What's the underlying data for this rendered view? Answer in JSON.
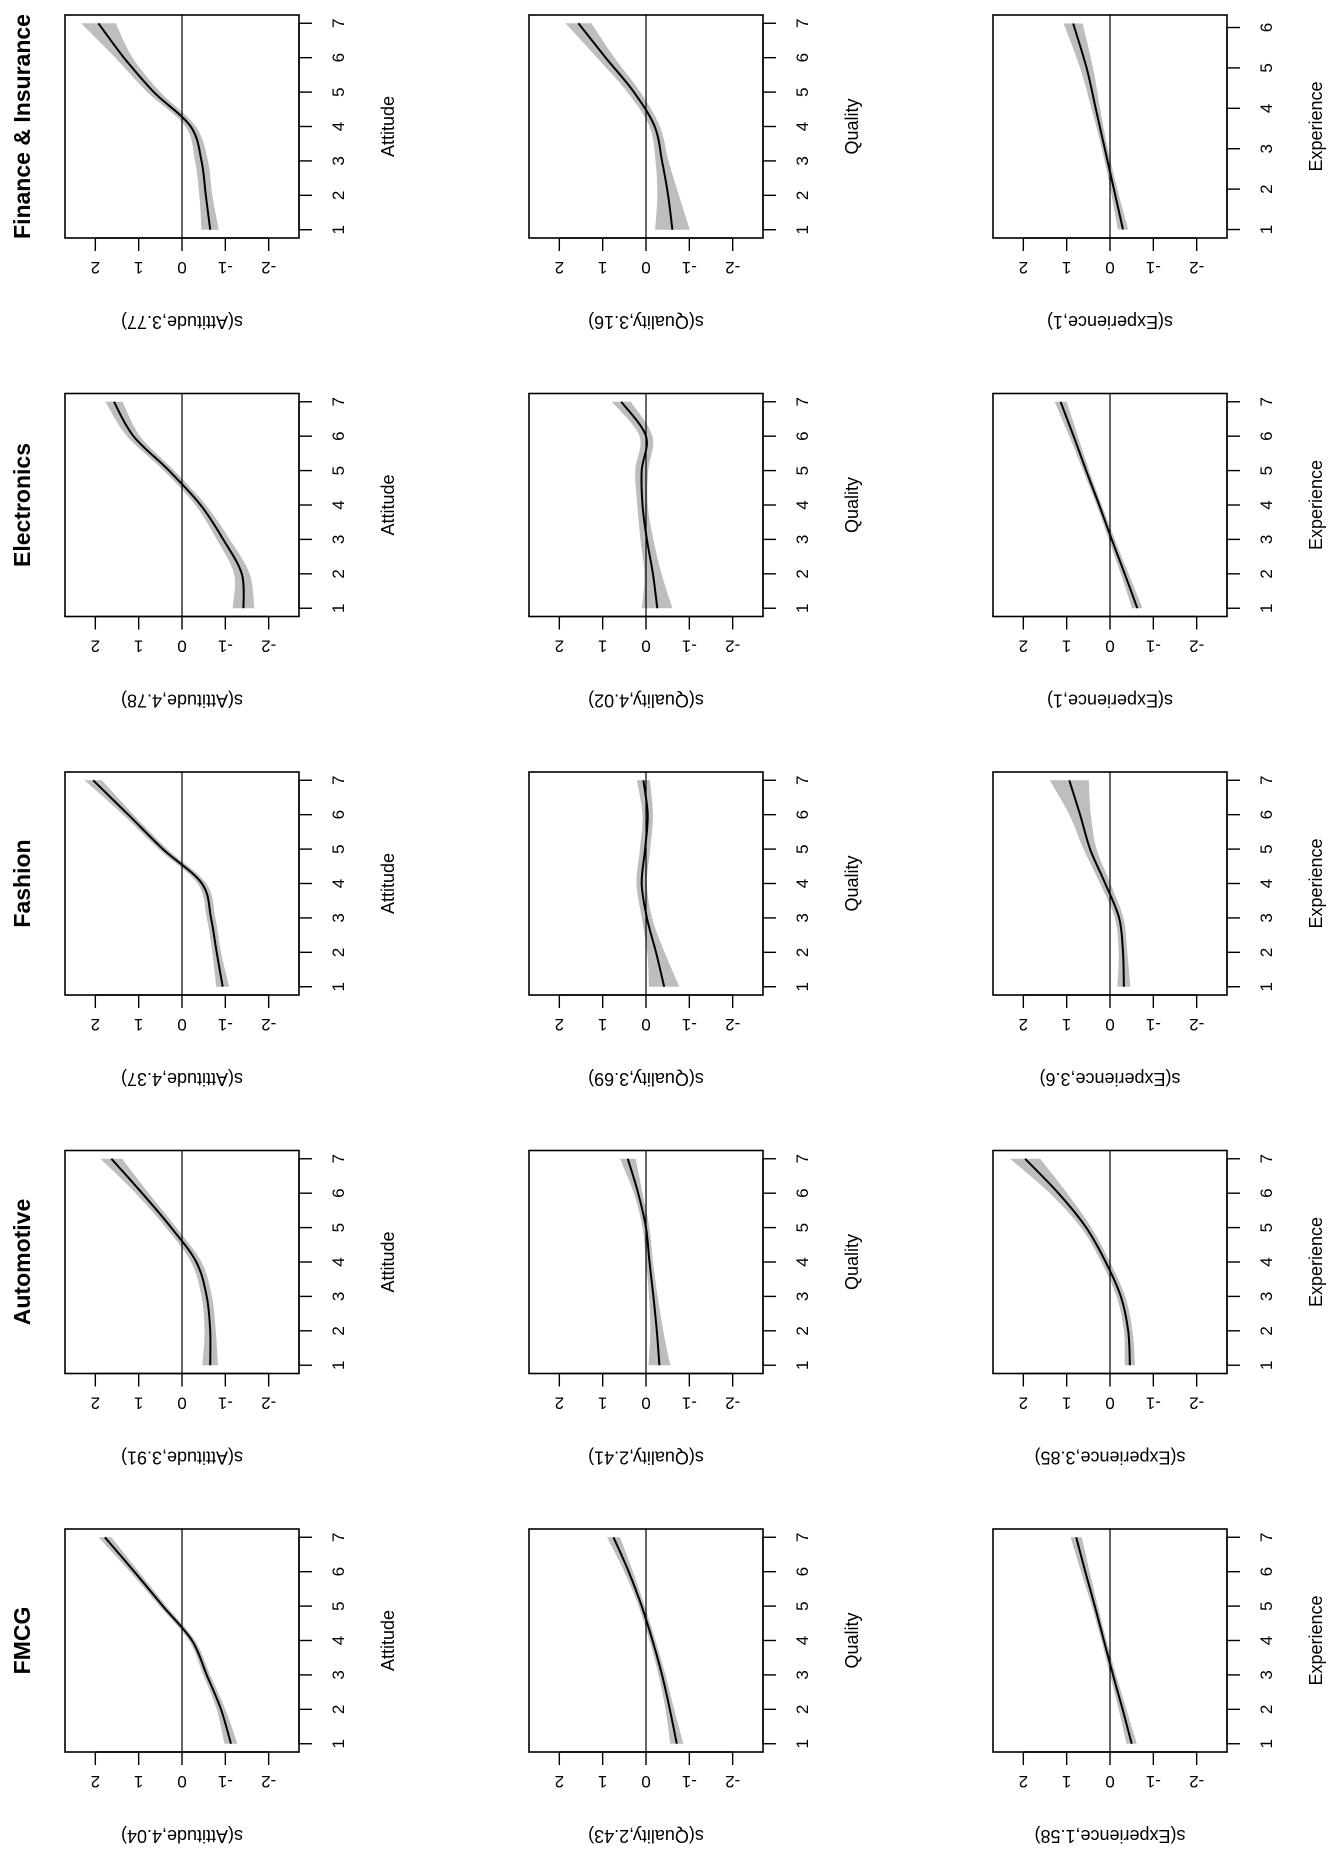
{
  "chart_data": [
    {
      "type": "line",
      "title": "FMCG",
      "xlabel": "Attitude",
      "ylabel": "s(Attitude,4.04)",
      "xlim": [
        0.76,
        7.24
      ],
      "ylim": [
        -2.7,
        2.7
      ],
      "xticks": [
        1,
        2,
        3,
        4,
        5,
        6,
        7
      ],
      "yticks": [
        -2,
        -1,
        0,
        1,
        2
      ],
      "x": [
        1,
        2,
        3,
        4,
        5,
        6,
        7
      ],
      "fit": [
        -1.13,
        -0.9,
        -0.57,
        -0.23,
        0.44,
        1.1,
        1.78
      ],
      "ci_halfwidth": [
        0.15,
        0.1,
        0.08,
        0.07,
        0.08,
        0.1,
        0.15
      ]
    },
    {
      "type": "line",
      "title": "FMCG",
      "xlabel": "Quality",
      "ylabel": "s(Quality,2.43)",
      "xlim": [
        0.76,
        7.24
      ],
      "ylim": [
        -2.7,
        2.7
      ],
      "xticks": [
        1,
        2,
        3,
        4,
        5,
        6,
        7
      ],
      "yticks": [
        -2,
        -1,
        0,
        1,
        2
      ],
      "x": [
        1,
        2,
        3,
        4,
        5,
        6,
        7
      ],
      "fit": [
        -0.71,
        -0.55,
        -0.37,
        -0.15,
        0.1,
        0.4,
        0.75
      ],
      "ci_halfwidth": [
        0.15,
        0.1,
        0.08,
        0.07,
        0.07,
        0.1,
        0.15
      ]
    },
    {
      "type": "line",
      "title": "FMCG",
      "xlabel": "Experience",
      "ylabel": "s(Experience,1.58)",
      "xlim": [
        0.76,
        7.24
      ],
      "ylim": [
        -2.7,
        2.7
      ],
      "xticks": [
        1,
        2,
        3,
        4,
        5,
        6,
        7
      ],
      "yticks": [
        -2,
        -1,
        0,
        1,
        2
      ],
      "x": [
        1,
        2,
        3,
        4,
        5,
        6,
        7
      ],
      "fit": [
        -0.5,
        -0.29,
        -0.07,
        0.14,
        0.35,
        0.57,
        0.78
      ],
      "ci_halfwidth": [
        0.12,
        0.09,
        0.07,
        0.06,
        0.07,
        0.1,
        0.13
      ]
    },
    {
      "type": "line",
      "title": "Automotive",
      "xlabel": "Attitude",
      "ylabel": "s(Attitude,3.91)",
      "xlim": [
        0.76,
        7.24
      ],
      "ylim": [
        -2.7,
        2.7
      ],
      "xticks": [
        1,
        2,
        3,
        4,
        5,
        6,
        7
      ],
      "yticks": [
        -2,
        -1,
        0,
        1,
        2
      ],
      "x": [
        1,
        2,
        3,
        4,
        5,
        6,
        7
      ],
      "fit": [
        -0.65,
        -0.65,
        -0.57,
        -0.33,
        0.25,
        0.92,
        1.63
      ],
      "ci_halfwidth": [
        0.18,
        0.13,
        0.12,
        0.12,
        0.12,
        0.15,
        0.25
      ]
    },
    {
      "type": "line",
      "title": "Automotive",
      "xlabel": "Quality",
      "ylabel": "s(Quality,2.41)",
      "xlim": [
        0.76,
        7.24
      ],
      "ylim": [
        -2.7,
        2.7
      ],
      "xticks": [
        1,
        2,
        3,
        4,
        5,
        6,
        7
      ],
      "yticks": [
        -2,
        -1,
        0,
        1,
        2
      ],
      "x": [
        1,
        2,
        3,
        4,
        5,
        6,
        7
      ],
      "fit": [
        -0.31,
        -0.25,
        -0.17,
        -0.08,
        0.0,
        0.18,
        0.42
      ],
      "ci_halfwidth": [
        0.25,
        0.15,
        0.1,
        0.08,
        0.08,
        0.1,
        0.18
      ]
    },
    {
      "type": "line",
      "title": "Automotive",
      "xlabel": "Experience",
      "ylabel": "s(Experience,3.85)",
      "xlim": [
        0.76,
        7.24
      ],
      "ylim": [
        -2.7,
        2.7
      ],
      "xticks": [
        1,
        2,
        3,
        4,
        5,
        6,
        7
      ],
      "yticks": [
        -2,
        -1,
        0,
        1,
        2
      ],
      "x": [
        1,
        2,
        3,
        4,
        5,
        6,
        7
      ],
      "fit": [
        -0.46,
        -0.42,
        -0.25,
        0.1,
        0.55,
        1.19,
        1.96
      ],
      "ci_halfwidth": [
        0.12,
        0.1,
        0.1,
        0.1,
        0.12,
        0.2,
        0.35
      ]
    },
    {
      "type": "line",
      "title": "Fashion",
      "xlabel": "Attitude",
      "ylabel": "s(Attitude,4.37)",
      "xlim": [
        0.76,
        7.24
      ],
      "ylim": [
        -2.7,
        2.7
      ],
      "xticks": [
        1,
        2,
        3,
        4,
        5,
        6,
        7
      ],
      "yticks": [
        -2,
        -1,
        0,
        1,
        2
      ],
      "x": [
        1,
        2,
        3,
        4,
        5,
        6,
        7
      ],
      "fit": [
        -0.94,
        -0.8,
        -0.67,
        -0.46,
        0.44,
        1.24,
        2.05
      ],
      "ci_halfwidth": [
        0.15,
        0.1,
        0.1,
        0.1,
        0.1,
        0.12,
        0.2
      ]
    },
    {
      "type": "line",
      "title": "Fashion",
      "xlabel": "Quality",
      "ylabel": "s(Quality,3.69)",
      "xlim": [
        0.76,
        7.24
      ],
      "ylim": [
        -2.7,
        2.7
      ],
      "xticks": [
        1,
        2,
        3,
        4,
        5,
        6,
        7
      ],
      "yticks": [
        -2,
        -1,
        0,
        1,
        2
      ],
      "x": [
        1,
        2,
        3,
        4,
        5,
        6,
        7
      ],
      "fit": [
        -0.42,
        -0.23,
        -0.02,
        0.1,
        0.02,
        -0.04,
        0.06
      ],
      "ci_halfwidth": [
        0.35,
        0.2,
        0.12,
        0.12,
        0.12,
        0.12,
        0.15
      ]
    },
    {
      "type": "line",
      "title": "Fashion",
      "xlabel": "Experience",
      "ylabel": "s(Experience,3.6)",
      "xlim": [
        0.76,
        7.24
      ],
      "ylim": [
        -2.7,
        2.7
      ],
      "xticks": [
        1,
        2,
        3,
        4,
        5,
        6,
        7
      ],
      "yticks": [
        -2,
        -1,
        0,
        1,
        2
      ],
      "x": [
        1,
        2,
        3,
        4,
        5,
        6,
        7
      ],
      "fit": [
        -0.32,
        -0.3,
        -0.21,
        0.11,
        0.46,
        0.69,
        0.94
      ],
      "ci_halfwidth": [
        0.15,
        0.1,
        0.1,
        0.12,
        0.15,
        0.25,
        0.45
      ]
    },
    {
      "type": "line",
      "title": "Electronics",
      "xlabel": "Attitude",
      "ylabel": "s(Attitude,4.78)",
      "xlim": [
        0.76,
        7.24
      ],
      "ylim": [
        -2.7,
        2.7
      ],
      "xticks": [
        1,
        2,
        3,
        4,
        5,
        6,
        7
      ],
      "yticks": [
        -2,
        -1,
        0,
        1,
        2
      ],
      "x": [
        1,
        2,
        3,
        4,
        5,
        6,
        7
      ],
      "fit": [
        -1.42,
        -1.38,
        -0.95,
        -0.43,
        0.3,
        1.12,
        1.57
      ],
      "ci_halfwidth": [
        0.25,
        0.18,
        0.15,
        0.12,
        0.12,
        0.15,
        0.2
      ]
    },
    {
      "type": "line",
      "title": "Electronics",
      "xlabel": "Quality",
      "ylabel": "s(Quality,4.02)",
      "xlim": [
        0.76,
        7.24
      ],
      "ylim": [
        -2.7,
        2.7
      ],
      "xticks": [
        1,
        2,
        3,
        4,
        5,
        6,
        7
      ],
      "yticks": [
        -2,
        -1,
        0,
        1,
        2
      ],
      "x": [
        1,
        2,
        3,
        4,
        5,
        6,
        7
      ],
      "fit": [
        -0.26,
        -0.16,
        -0.02,
        0.08,
        0.1,
        0.0,
        0.57
      ],
      "ci_halfwidth": [
        0.35,
        0.2,
        0.15,
        0.12,
        0.15,
        0.15,
        0.22
      ]
    },
    {
      "type": "line",
      "title": "Electronics",
      "xlabel": "Experience",
      "ylabel": "s(Experience,1)",
      "xlim": [
        0.76,
        7.24
      ],
      "ylim": [
        -2.7,
        2.7
      ],
      "xticks": [
        1,
        2,
        3,
        4,
        5,
        6,
        7
      ],
      "yticks": [
        -2,
        -1,
        0,
        1,
        2
      ],
      "x": [
        1,
        2,
        3,
        4,
        5,
        6,
        7
      ],
      "fit": [
        -0.63,
        -0.34,
        -0.04,
        0.25,
        0.55,
        0.84,
        1.14
      ],
      "ci_halfwidth": [
        0.12,
        0.09,
        0.07,
        0.06,
        0.07,
        0.1,
        0.14
      ]
    },
    {
      "type": "line",
      "title": "Finance & Insurance",
      "xlabel": "Attitude",
      "ylabel": "s(Attitude,3.77)",
      "xlim": [
        0.76,
        7.24
      ],
      "ylim": [
        -2.7,
        2.7
      ],
      "xticks": [
        1,
        2,
        3,
        4,
        5,
        6,
        7
      ],
      "yticks": [
        -2,
        -1,
        0,
        1,
        2
      ],
      "x": [
        1,
        2,
        3,
        4,
        5,
        6,
        7
      ],
      "fit": [
        -0.65,
        -0.55,
        -0.45,
        -0.2,
        0.65,
        1.34,
        1.93
      ],
      "ci_halfwidth": [
        0.2,
        0.15,
        0.15,
        0.12,
        0.15,
        0.2,
        0.4
      ]
    },
    {
      "type": "line",
      "title": "Finance & Insurance",
      "xlabel": "Quality",
      "ylabel": "s(Quality,3.16)",
      "xlim": [
        0.76,
        7.24
      ],
      "ylim": [
        -2.7,
        2.7
      ],
      "xticks": [
        1,
        2,
        3,
        4,
        5,
        6,
        7
      ],
      "yticks": [
        -2,
        -1,
        0,
        1,
        2
      ],
      "x": [
        1,
        2,
        3,
        4,
        5,
        6,
        7
      ],
      "fit": [
        -0.61,
        -0.51,
        -0.37,
        -0.2,
        0.28,
        0.93,
        1.56
      ],
      "ci_halfwidth": [
        0.4,
        0.25,
        0.15,
        0.12,
        0.15,
        0.2,
        0.3
      ]
    },
    {
      "type": "line",
      "title": "Finance & Insurance",
      "xlabel": "Experience",
      "ylabel": "s(Experience,1)",
      "xlim": [
        0.79,
        6.31
      ],
      "ylim": [
        -2.7,
        2.7
      ],
      "xticks": [
        1,
        2,
        3,
        4,
        5,
        6
      ],
      "yticks": [
        -2,
        -1,
        0,
        1,
        2
      ],
      "x": [
        1,
        2,
        3,
        4,
        5,
        6.1
      ],
      "fit": [
        -0.3,
        -0.09,
        0.12,
        0.33,
        0.54,
        0.85
      ],
      "ci_halfwidth": [
        0.12,
        0.08,
        0.07,
        0.1,
        0.15,
        0.22
      ]
    }
  ],
  "layout_note_free": true,
  "colors": {
    "ci_band": "#bebebe",
    "line": "#000000"
  },
  "orientation": "figure rotated 90 degrees counter-clockwise"
}
